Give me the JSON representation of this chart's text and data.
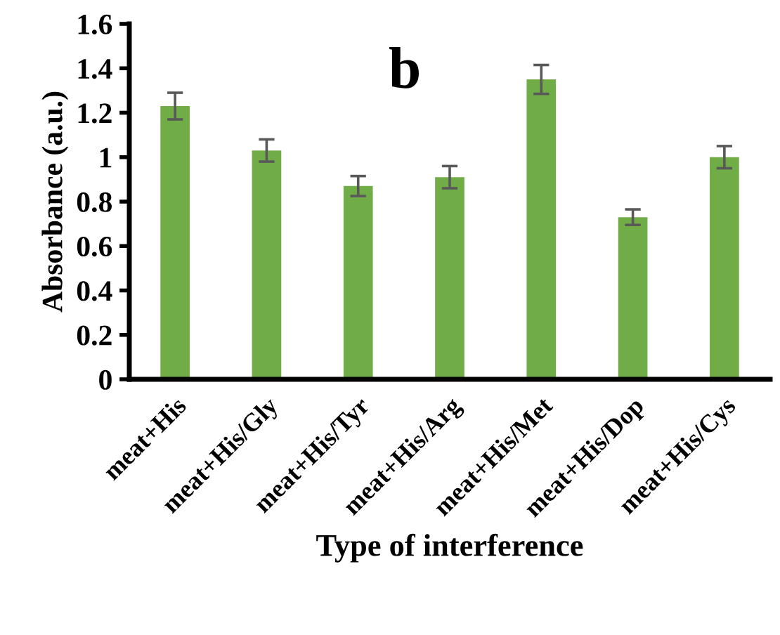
{
  "chart_data": {
    "type": "bar",
    "xlabel": "Type of interference",
    "ylabel": "Absorbance (a.u.)",
    "annotations": [
      "b"
    ],
    "categories": [
      "meat+His",
      "meat+His/Gly",
      "meat+His/Tyr",
      "meat+His/Arg",
      "meat+His/Met",
      "meat+His/Dop",
      "meat+His/Cys"
    ],
    "values": [
      1.23,
      1.03,
      0.87,
      0.91,
      1.35,
      0.73,
      1.0
    ],
    "errors": [
      0.06,
      0.05,
      0.045,
      0.05,
      0.065,
      0.035,
      0.05
    ],
    "color": "#70ad47",
    "ylim": [
      0,
      1.6
    ],
    "yticks": [
      0,
      {
        "value": 0.2,
        "label": "0.2"
      },
      {
        "value": 0.4,
        "label": "0.4"
      },
      {
        "value": 0.6,
        "label": "0.6"
      },
      {
        "value": 0.8,
        "label": "0.8"
      },
      1,
      {
        "value": 1.2,
        "label": "1.2"
      },
      {
        "value": 1.4,
        "label": "1.4"
      },
      {
        "value": 1.6,
        "label": "1.6"
      }
    ],
    "grid": false,
    "legend": false
  }
}
